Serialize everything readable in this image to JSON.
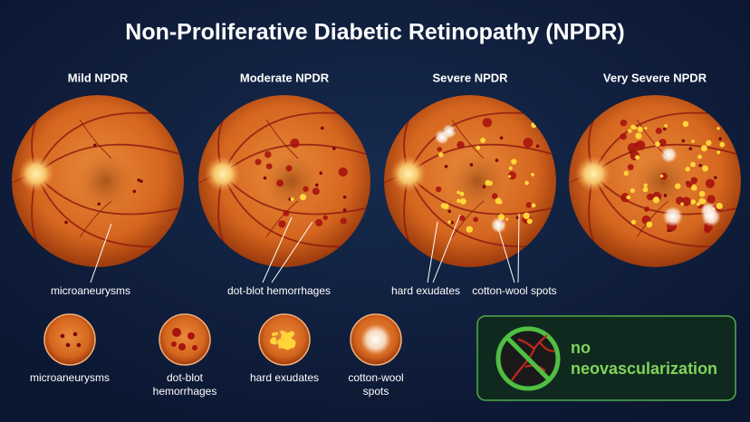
{
  "title": "Non-Proliferative Diabetic Retinopathy (NPDR)",
  "stages": [
    "Mild NPDR",
    "Moderate NPDR",
    "Severe NPDR",
    "Very Severe NPDR"
  ],
  "annotations": [
    "microaneurysms",
    "dot-blot hemorrhages",
    "hard exudates",
    "cotton-wool spots"
  ],
  "legend": [
    {
      "lines": [
        "microaneurysms"
      ]
    },
    {
      "lines": [
        "dot-blot",
        "hemorrhages"
      ]
    },
    {
      "lines": [
        "hard exudates"
      ]
    },
    {
      "lines": [
        "cotton-wool",
        "spots"
      ]
    }
  ],
  "note": {
    "lines": [
      "no",
      "neovascularization"
    ]
  }
}
